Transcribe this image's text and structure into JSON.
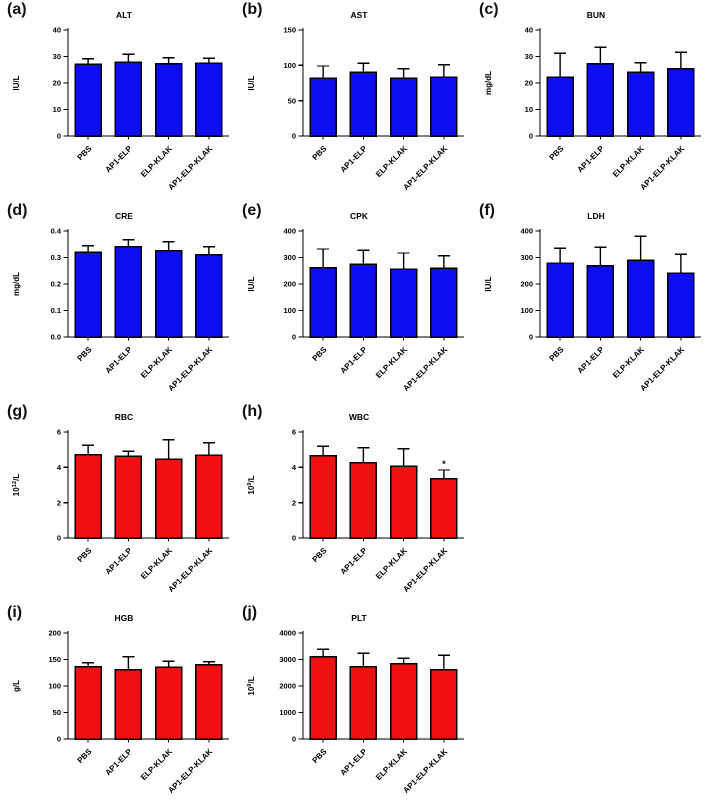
{
  "figure": {
    "background": "#ffffff",
    "bar_colors": {
      "blue": "#0d0df0",
      "red": "#f01212"
    },
    "axis_color": "#000000",
    "categories": [
      "PBS",
      "AP1-ELP",
      "ELP-KLAK",
      "AP1-ELP-KLAK"
    ]
  },
  "chart_data": [
    {
      "panel": "(a)",
      "type": "bar",
      "title": "ALT",
      "ylabel": "IU/L",
      "color": "blue",
      "ylim": [
        0,
        40
      ],
      "yticks": [
        0,
        10,
        20,
        30,
        40
      ],
      "tick_decimals": 0,
      "categories": [
        "PBS",
        "AP1-ELP",
        "ELP-KLAK",
        "AP1-ELP-KLAK"
      ],
      "values": [
        27.0,
        27.8,
        27.2,
        27.4
      ],
      "errors": [
        2.2,
        3.0,
        2.3,
        2.0
      ],
      "annotations": []
    },
    {
      "panel": "(b)",
      "type": "bar",
      "title": "AST",
      "ylabel": "IU/L",
      "color": "blue",
      "ylim": [
        0,
        150
      ],
      "yticks": [
        0,
        50,
        100,
        150
      ],
      "tick_decimals": 0,
      "categories": [
        "PBS",
        "AP1-ELP",
        "ELP-KLAK",
        "AP1-ELP-KLAK"
      ],
      "values": [
        82,
        90,
        82,
        83
      ],
      "errors": [
        17,
        13,
        13,
        18
      ],
      "annotations": []
    },
    {
      "panel": "(c)",
      "type": "bar",
      "title": "BUN",
      "ylabel": "mg/dL",
      "color": "blue",
      "ylim": [
        0,
        40
      ],
      "yticks": [
        0,
        10,
        20,
        30,
        40
      ],
      "tick_decimals": 0,
      "categories": [
        "PBS",
        "AP1-ELP",
        "ELP-KLAK",
        "AP1-ELP-KLAK"
      ],
      "values": [
        22.2,
        27.2,
        24.0,
        25.3
      ],
      "errors": [
        9.0,
        6.3,
        3.7,
        6.3
      ],
      "annotations": []
    },
    {
      "panel": "(d)",
      "type": "bar",
      "title": "CRE",
      "ylabel": "mg/dL",
      "color": "blue",
      "ylim": [
        0,
        0.4
      ],
      "yticks": [
        0,
        0.1,
        0.2,
        0.3,
        0.4
      ],
      "tick_decimals": 1,
      "categories": [
        "PBS",
        "AP1-ELP",
        "ELP-KLAK",
        "AP1-ELP-KLAK"
      ],
      "values": [
        0.32,
        0.34,
        0.325,
        0.31
      ],
      "errors": [
        0.025,
        0.027,
        0.035,
        0.03
      ],
      "annotations": []
    },
    {
      "panel": "(e)",
      "type": "bar",
      "title": "CPK",
      "ylabel": "IU/L",
      "color": "blue",
      "ylim": [
        0,
        400
      ],
      "yticks": [
        0,
        100,
        200,
        300,
        400
      ],
      "tick_decimals": 0,
      "categories": [
        "PBS",
        "AP1-ELP",
        "ELP-KLAK",
        "AP1-ELP-KLAK"
      ],
      "values": [
        262,
        275,
        255,
        260
      ],
      "errors": [
        70,
        52,
        62,
        47
      ],
      "annotations": []
    },
    {
      "panel": "(f)",
      "type": "bar",
      "title": "LDH",
      "ylabel": "IU/L",
      "color": "blue",
      "ylim": [
        0,
        400
      ],
      "yticks": [
        0,
        100,
        200,
        300,
        400
      ],
      "tick_decimals": 0,
      "categories": [
        "PBS",
        "AP1-ELP",
        "ELP-KLAK",
        "AP1-ELP-KLAK"
      ],
      "values": [
        278,
        268,
        290,
        240
      ],
      "errors": [
        57,
        70,
        90,
        72
      ],
      "annotations": []
    },
    {
      "panel": "(g)",
      "type": "bar",
      "title": "RBC",
      "ylabel": "10^12/L",
      "color": "red",
      "ylim": [
        0,
        6
      ],
      "yticks": [
        0,
        2,
        4,
        6
      ],
      "tick_decimals": 0,
      "categories": [
        "PBS",
        "AP1-ELP",
        "ELP-KLAK",
        "AP1-ELP-KLAK"
      ],
      "values": [
        4.7,
        4.62,
        4.47,
        4.67
      ],
      "errors": [
        0.55,
        0.28,
        1.1,
        0.72
      ],
      "annotations": []
    },
    {
      "panel": "(h)",
      "type": "bar",
      "title": "WBC",
      "ylabel": "10^9/L",
      "color": "red",
      "ylim": [
        0,
        6
      ],
      "yticks": [
        0,
        2,
        4,
        6
      ],
      "tick_decimals": 0,
      "categories": [
        "PBS",
        "AP1-ELP",
        "ELP-KLAK",
        "AP1-ELP-KLAK"
      ],
      "values": [
        4.65,
        4.25,
        4.05,
        3.35
      ],
      "errors": [
        0.55,
        0.85,
        1.0,
        0.5
      ],
      "annotations": [
        {
          "bar": 3,
          "text": "*"
        }
      ]
    },
    {
      "panel": "(i)",
      "type": "bar",
      "title": "HGB",
      "ylabel": "g/L",
      "color": "red",
      "ylim": [
        0,
        200
      ],
      "yticks": [
        0,
        50,
        100,
        150,
        200
      ],
      "tick_decimals": 0,
      "categories": [
        "PBS",
        "AP1-ELP",
        "ELP-KLAK",
        "AP1-ELP-KLAK"
      ],
      "values": [
        136,
        131,
        135,
        140
      ],
      "errors": [
        8,
        24,
        12,
        6
      ],
      "annotations": []
    },
    {
      "panel": "(j)",
      "type": "bar",
      "title": "PLT",
      "ylabel": "10^9/L",
      "color": "red",
      "ylim": [
        0,
        4000
      ],
      "yticks": [
        0,
        1000,
        2000,
        3000,
        4000
      ],
      "tick_decimals": 0,
      "categories": [
        "PBS",
        "AP1-ELP",
        "ELP-KLAK",
        "AP1-ELP-KLAK"
      ],
      "values": [
        3100,
        2720,
        2840,
        2620
      ],
      "errors": [
        280,
        510,
        200,
        540
      ],
      "annotations": []
    }
  ]
}
